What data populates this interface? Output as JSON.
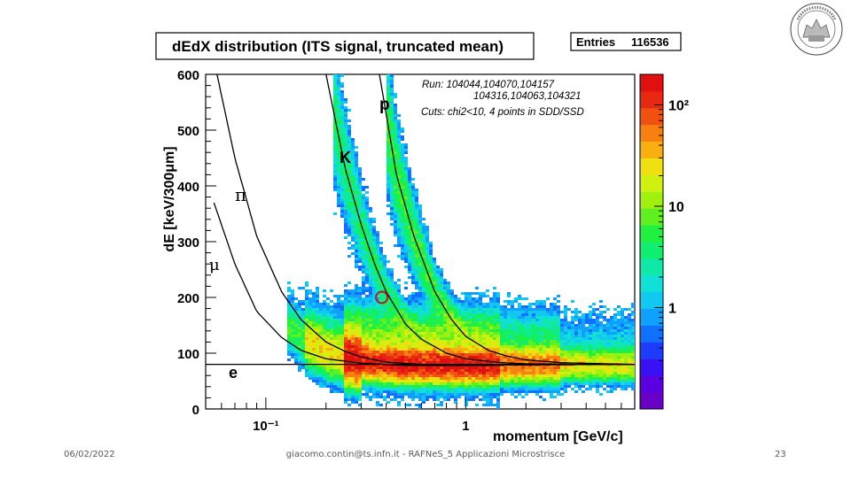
{
  "slide": {
    "footer_date": "06/02/2022",
    "footer_center": "giacomo.contin@ts.infn.it - RAFNeS_5 Applicazioni Microstrisce",
    "page_number": "23"
  },
  "chart_data": {
    "type": "heatmap",
    "title": "dEdX distribution (ITS signal, truncated mean)",
    "stats": {
      "label": "Entries",
      "value": "116536"
    },
    "xlabel": "momentum [GeV/c]",
    "ylabel": "dE [keV/300μm]",
    "x_scale": "log",
    "xlim": [
      0.05,
      7.0
    ],
    "ylim": [
      0,
      600
    ],
    "x_ticks": [
      {
        "value": 0.1,
        "label": "10⁻¹"
      },
      {
        "value": 1,
        "label": "1"
      }
    ],
    "y_ticks": [
      0,
      100,
      200,
      300,
      400,
      500,
      600
    ],
    "colorbar": {
      "scale": "log",
      "range": [
        0.1,
        200
      ],
      "ticks": [
        {
          "value": 1,
          "label": "1"
        },
        {
          "value": 10,
          "label": "10"
        },
        {
          "value": 100,
          "label": "10²"
        }
      ],
      "colors": [
        "#6a00c8",
        "#5a00e0",
        "#3a10f5",
        "#1e3cff",
        "#1070ff",
        "#10a0ff",
        "#10c8f0",
        "#10e0d8",
        "#10e8a8",
        "#10ee70",
        "#20f040",
        "#60f020",
        "#a0f010",
        "#d0f010",
        "#f0e010",
        "#f8b010",
        "#f88010",
        "#f05010",
        "#e82810",
        "#e01010"
      ]
    },
    "annotations": [
      "Run: 104044,104070,104157",
      "104316,104063,104321",
      "Cuts: chi2<10, 4 points in SDD/SSD"
    ],
    "curves": [
      {
        "label": "e",
        "points": [
          [
            0.05,
            80
          ],
          [
            7,
            80
          ]
        ]
      },
      {
        "label": "μ",
        "points": [
          [
            0.055,
            370
          ],
          [
            0.07,
            260
          ],
          [
            0.09,
            175
          ],
          [
            0.12,
            128
          ],
          [
            0.15,
            105
          ],
          [
            0.2,
            90
          ],
          [
            0.3,
            82
          ],
          [
            0.5,
            78
          ],
          [
            1,
            78
          ],
          [
            2,
            79
          ],
          [
            7,
            80
          ]
        ]
      },
      {
        "label": "π",
        "points": [
          [
            0.057,
            600
          ],
          [
            0.07,
            450
          ],
          [
            0.09,
            310
          ],
          [
            0.12,
            210
          ],
          [
            0.15,
            160
          ],
          [
            0.2,
            120
          ],
          [
            0.25,
            103
          ],
          [
            0.3,
            93
          ],
          [
            0.4,
            84
          ],
          [
            0.6,
            80
          ],
          [
            1,
            78
          ],
          [
            2,
            79
          ],
          [
            7,
            80
          ]
        ]
      },
      {
        "label": "K",
        "points": [
          [
            0.2,
            600
          ],
          [
            0.25,
            430
          ],
          [
            0.3,
            330
          ],
          [
            0.35,
            260
          ],
          [
            0.4,
            210
          ],
          [
            0.5,
            152
          ],
          [
            0.6,
            125
          ],
          [
            0.8,
            100
          ],
          [
            1,
            90
          ],
          [
            1.5,
            83
          ],
          [
            2,
            81
          ],
          [
            4,
            80
          ],
          [
            7,
            80
          ]
        ]
      },
      {
        "label": "p",
        "points": [
          [
            0.37,
            600
          ],
          [
            0.45,
            420
          ],
          [
            0.55,
            310
          ],
          [
            0.7,
            210
          ],
          [
            0.85,
            160
          ],
          [
            1,
            130
          ],
          [
            1.3,
            105
          ],
          [
            1.6,
            95
          ],
          [
            2,
            88
          ],
          [
            3,
            83
          ],
          [
            5,
            81
          ],
          [
            7,
            80
          ]
        ]
      }
    ],
    "highlight": {
      "x": 0.38,
      "y": 200
    },
    "density_bands": [
      {
        "name": "e/mu/pi band",
        "x_range": [
          0.13,
          7.0
        ],
        "y_center": 80,
        "peak_count": 150
      },
      {
        "name": "kaon band",
        "x_range": [
          0.25,
          1.5
        ],
        "y_center": 200,
        "peak_count": 5
      },
      {
        "name": "proton band",
        "x_range": [
          0.45,
          3.0
        ],
        "y_center": 250,
        "peak_count": 8
      }
    ]
  }
}
